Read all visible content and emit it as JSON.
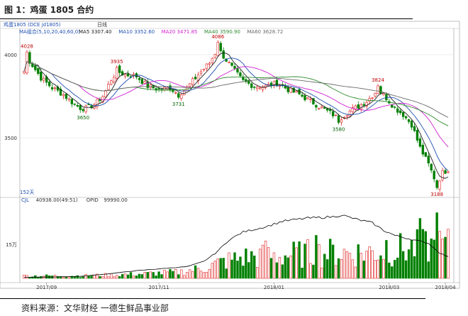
{
  "figure_title": "图 1：鸡蛋 1805 合约",
  "source_text": "资料来源：文华财经 一德生鲜品事业部",
  "chart_data": {
    "type": "candlestick",
    "toolbar": {
      "symbol": "鸡蛋1805 (DCE jd1805)",
      "period": "日线"
    },
    "ma_legend": {
      "label": "MA组合(5,10,20,40,60,0)",
      "items": [
        {
          "text": "MA5 3307.40",
          "color": "#202020"
        },
        {
          "text": "MA10 3352.60",
          "color": "#1f4fb0"
        },
        {
          "text": "MA20 3471.85",
          "color": "#d020d0"
        },
        {
          "text": "MA40 3590.90",
          "color": "#2e8b2e"
        },
        {
          "text": "MA60 3628.72",
          "color": "#6a6a6a"
        }
      ]
    },
    "price_axis": {
      "ticks": [
        "4000",
        "3500"
      ],
      "tick_values": [
        4000,
        3500
      ],
      "ylim": [
        3150,
        4115
      ]
    },
    "days_label": "152天",
    "annotations": [
      {
        "text": "4028",
        "index": 1,
        "value": 4028,
        "color": "#c00000",
        "pos": "above"
      },
      {
        "text": "3650",
        "index": 21,
        "value": 3650,
        "color": "#006400",
        "pos": "below"
      },
      {
        "text": "3935",
        "index": 33,
        "value": 3935,
        "color": "#c00000",
        "pos": "above"
      },
      {
        "text": "3731",
        "index": 55,
        "value": 3731,
        "color": "#006400",
        "pos": "below"
      },
      {
        "text": "4086",
        "index": 69,
        "value": 4086,
        "color": "#c00000",
        "pos": "above"
      },
      {
        "text": "3580",
        "index": 112,
        "value": 3580,
        "color": "#006400",
        "pos": "below"
      },
      {
        "text": "3824",
        "index": 126,
        "value": 3824,
        "color": "#c00000",
        "pos": "above"
      },
      {
        "text": "3188",
        "index": 147,
        "value": 3188,
        "color": "#c00000",
        "pos": "below"
      }
    ],
    "volume_legend": {
      "items": [
        {
          "text": "CJL",
          "color": "#1f4fb0"
        },
        {
          "text": "40938.00(49:51)",
          "color": "#333333"
        },
        {
          "text": "OPID",
          "color": "#333333"
        },
        {
          "text": "99990.00",
          "color": "#333333"
        }
      ]
    },
    "volume_axis": {
      "ticks": [
        "15万"
      ],
      "tick_values": [
        150000
      ],
      "ylim": [
        0,
        320000
      ]
    },
    "x_axis": {
      "ticks": [
        "2017/09",
        "2017/11",
        "2018/01",
        "2018/03",
        "2018/04"
      ],
      "tick_indices": [
        8,
        48,
        89,
        130,
        150
      ]
    },
    "colors": {
      "up": "#e02020",
      "down": "#008000",
      "up_fill": "#ffffff",
      "oi_line": "#000000"
    },
    "ma_periods": [
      5,
      10,
      20,
      40,
      60
    ],
    "close_anchors": [
      [
        0,
        3900
      ],
      [
        1,
        4000
      ],
      [
        2,
        3960
      ],
      [
        6,
        3860
      ],
      [
        10,
        3800
      ],
      [
        14,
        3760
      ],
      [
        18,
        3700
      ],
      [
        21,
        3670
      ],
      [
        25,
        3700
      ],
      [
        28,
        3750
      ],
      [
        31,
        3850
      ],
      [
        33,
        3900
      ],
      [
        36,
        3880
      ],
      [
        40,
        3870
      ],
      [
        44,
        3810
      ],
      [
        48,
        3790
      ],
      [
        52,
        3800
      ],
      [
        55,
        3760
      ],
      [
        58,
        3800
      ],
      [
        62,
        3880
      ],
      [
        66,
        3950
      ],
      [
        69,
        4040
      ],
      [
        71,
        3990
      ],
      [
        75,
        3900
      ],
      [
        78,
        3840
      ],
      [
        82,
        3810
      ],
      [
        86,
        3810
      ],
      [
        90,
        3830
      ],
      [
        94,
        3790
      ],
      [
        98,
        3760
      ],
      [
        102,
        3720
      ],
      [
        106,
        3680
      ],
      [
        110,
        3640
      ],
      [
        112,
        3610
      ],
      [
        115,
        3650
      ],
      [
        118,
        3680
      ],
      [
        122,
        3720
      ],
      [
        126,
        3790
      ],
      [
        129,
        3740
      ],
      [
        132,
        3680
      ],
      [
        135,
        3640
      ],
      [
        138,
        3580
      ],
      [
        141,
        3440
      ],
      [
        144,
        3340
      ],
      [
        147,
        3220
      ],
      [
        149,
        3290
      ],
      [
        151,
        3310
      ]
    ],
    "oi_anchors": [
      [
        0,
        5000
      ],
      [
        10,
        6000
      ],
      [
        20,
        9000
      ],
      [
        30,
        20000
      ],
      [
        40,
        34000
      ],
      [
        50,
        44000
      ],
      [
        58,
        52000
      ],
      [
        64,
        75000
      ],
      [
        68,
        110000
      ],
      [
        73,
        170000
      ],
      [
        78,
        205000
      ],
      [
        86,
        228000
      ],
      [
        92,
        252000
      ],
      [
        100,
        265000
      ],
      [
        110,
        272000
      ],
      [
        113,
        280000
      ],
      [
        118,
        262000
      ],
      [
        124,
        245000
      ],
      [
        128,
        212000
      ],
      [
        132,
        190000
      ],
      [
        138,
        172000
      ],
      [
        144,
        155000
      ],
      [
        148,
        112000
      ],
      [
        151,
        95000
      ]
    ],
    "volume_anchors": [
      [
        0,
        12000
      ],
      [
        20,
        12000
      ],
      [
        40,
        20000
      ],
      [
        55,
        30000
      ],
      [
        64,
        50000
      ],
      [
        72,
        85000
      ],
      [
        80,
        105000
      ],
      [
        90,
        110000
      ],
      [
        100,
        120000
      ],
      [
        110,
        125000
      ],
      [
        120,
        125000
      ],
      [
        130,
        135000
      ],
      [
        140,
        150000
      ],
      [
        151,
        160000
      ]
    ],
    "volume_spikes": [
      [
        86,
        165000
      ],
      [
        104,
        190000
      ],
      [
        129,
        168000
      ],
      [
        141,
        265000
      ],
      [
        147,
        290000
      ]
    ]
  }
}
